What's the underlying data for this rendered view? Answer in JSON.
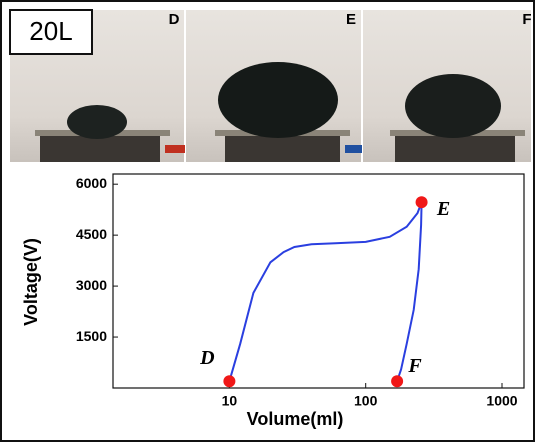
{
  "chart_data": {
    "type": "line",
    "badge": "20L",
    "panel_labels": [
      "D",
      "E",
      "F"
    ],
    "xlabel": "Volume(ml)",
    "ylabel": "Voltage(V)",
    "log_x": true,
    "xlim": [
      1.4,
      1450
    ],
    "ylim": [
      0,
      6300
    ],
    "xticks": [
      10,
      100,
      1000
    ],
    "yticks": [
      1500,
      3000,
      4500,
      6000
    ],
    "color": "#2a3fe0",
    "x": [
      10,
      12,
      15,
      20,
      25,
      30,
      40,
      60,
      100,
      150,
      200,
      240,
      257,
      255,
      245,
      225,
      200,
      182,
      170
    ],
    "values": [
      200,
      1300,
      2800,
      3700,
      4000,
      4150,
      4230,
      4260,
      4300,
      4450,
      4750,
      5150,
      5470,
      4800,
      3500,
      2300,
      1300,
      550,
      200
    ],
    "points": {
      "labels": [
        "D",
        "E",
        "F"
      ],
      "x": [
        10,
        257,
        170
      ],
      "values": [
        200,
        5470,
        200
      ],
      "color": "#f01818"
    }
  }
}
